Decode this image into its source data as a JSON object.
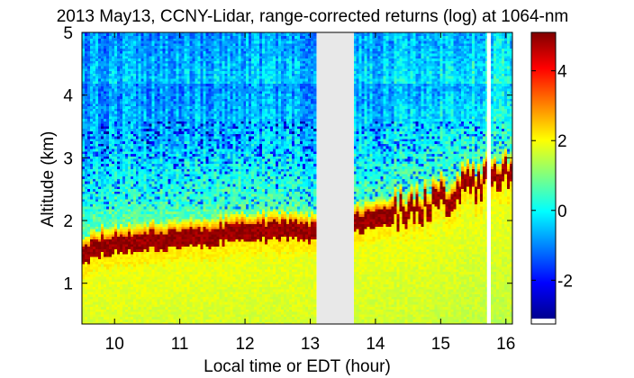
{
  "chart_data": {
    "type": "heatmap",
    "title": "2013 May13, CCNY-Lidar, range-corrected returns (log) at 1064-nm",
    "xlabel": "Local time or EDT (hour)",
    "ylabel": "Altitude (km)",
    "xlim": [
      9.5,
      16.1
    ],
    "ylim": [
      0.35,
      5.0
    ],
    "x_ticks": [
      10,
      11,
      12,
      13,
      14,
      15,
      16
    ],
    "y_ticks": [
      1,
      2,
      3,
      4,
      5
    ],
    "colorbar": {
      "clim": [
        -3.1,
        5.1
      ],
      "ticks": [
        -2,
        0,
        2,
        4
      ],
      "colormap": "jet"
    },
    "data_gaps": [
      {
        "start": 13.1,
        "end": 13.67,
        "color": "#e8e8e8"
      },
      {
        "start": 15.71,
        "end": 15.75,
        "color": "#ffffff"
      }
    ],
    "aerosol_layer_top_km": [
      {
        "t": 9.5,
        "z": 1.55
      },
      {
        "t": 9.8,
        "z": 1.75
      },
      {
        "t": 10.2,
        "z": 1.8
      },
      {
        "t": 10.9,
        "z": 1.85
      },
      {
        "t": 11.4,
        "z": 1.9
      },
      {
        "t": 12.0,
        "z": 1.95
      },
      {
        "t": 12.6,
        "z": 1.98
      },
      {
        "t": 13.0,
        "z": 1.95
      },
      {
        "t": 13.67,
        "z": 2.1
      },
      {
        "t": 14.2,
        "z": 2.2
      },
      {
        "t": 14.7,
        "z": 2.35
      },
      {
        "t": 15.2,
        "z": 2.55
      },
      {
        "t": 15.7,
        "z": 2.8
      },
      {
        "t": 16.1,
        "z": 2.9
      }
    ]
  }
}
